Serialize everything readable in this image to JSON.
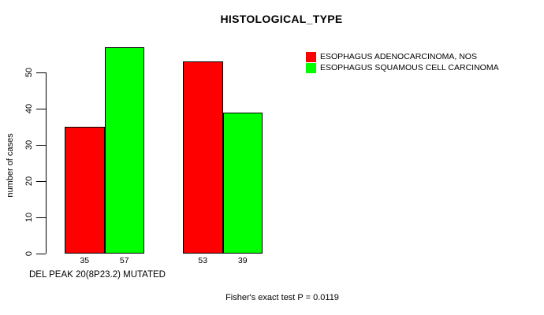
{
  "chart_data": {
    "type": "bar",
    "title": "HISTOLOGICAL_TYPE",
    "ylabel": "number of cases",
    "xlabel": "DEL PEAK 20(8P23.2) MUTATED",
    "annotation": "Fisher's exact test P = 0.0119",
    "categories": [
      "",
      ""
    ],
    "series": [
      {
        "name": "ESOPHAGUS ADENOCARCINOMA, NOS",
        "color": "#ff0000",
        "values": [
          35,
          53
        ]
      },
      {
        "name": "ESOPHAGUS SQUAMOUS CELL CARCINOMA",
        "color": "#00ff00",
        "values": [
          57,
          39
        ]
      }
    ],
    "bar_value_labels": [
      "35",
      "57",
      "53",
      "39"
    ],
    "yticks": [
      0,
      10,
      20,
      30,
      40,
      50
    ],
    "ylim": [
      0,
      57
    ],
    "grid": false,
    "legend_position": "top-right"
  },
  "colors": {
    "adenocarcinoma_red": "#ff0000",
    "squamous_green": "#00ff00",
    "axis": "#000000",
    "background": "#ffffff"
  }
}
